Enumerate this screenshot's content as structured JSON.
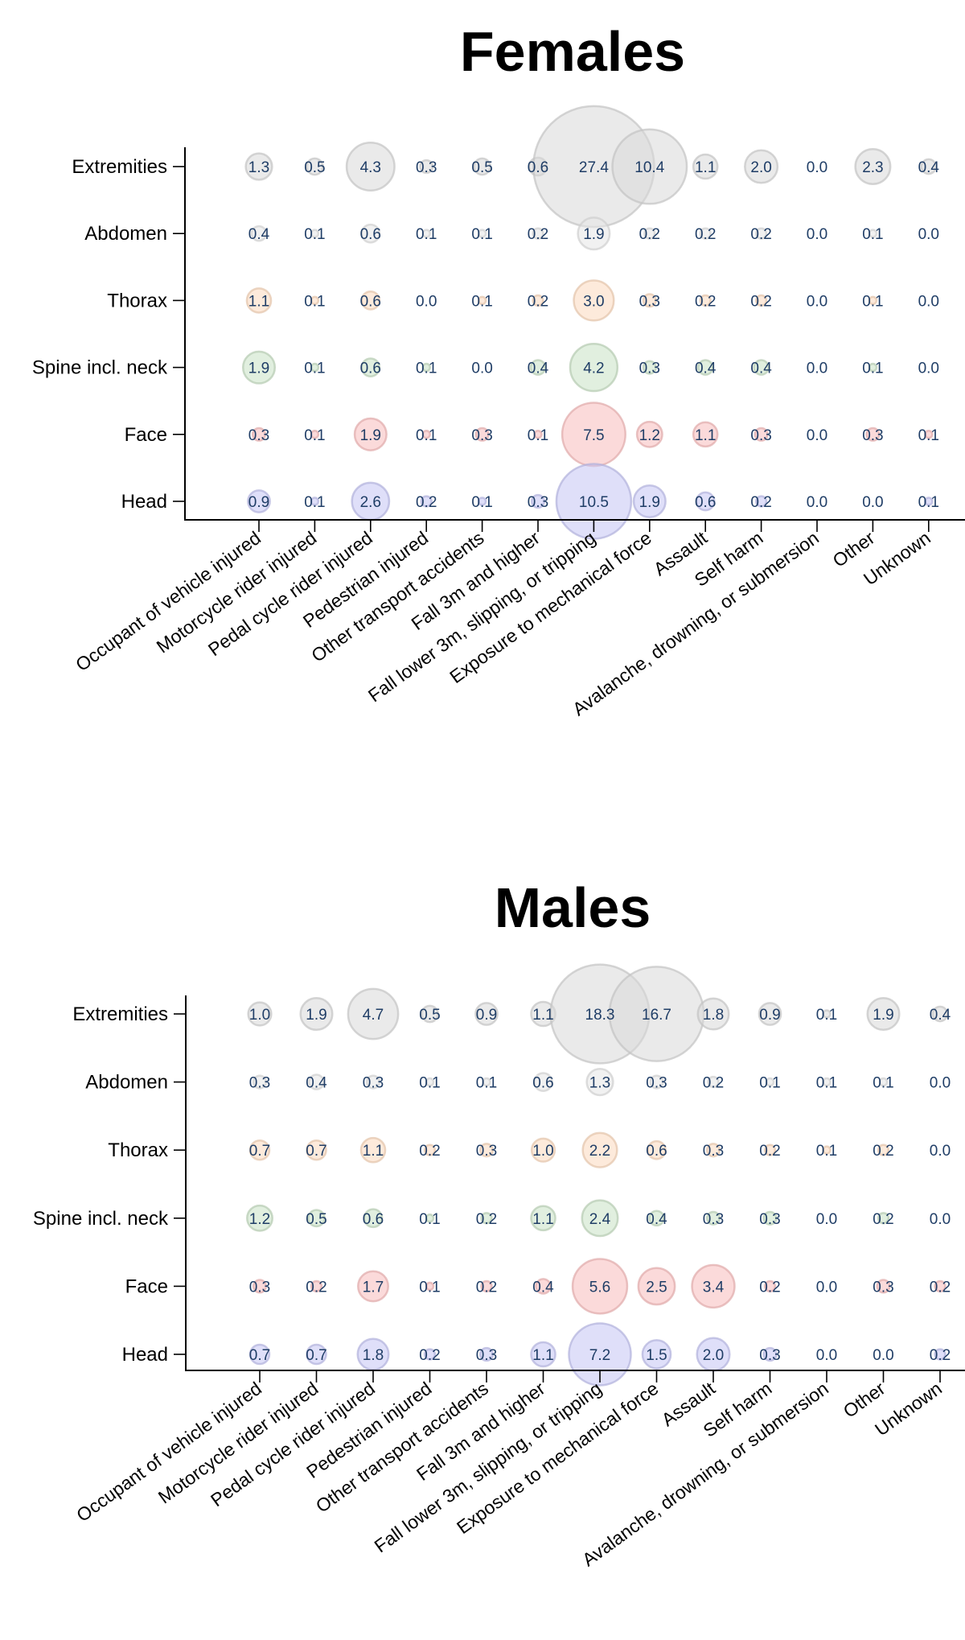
{
  "chart_data": [
    {
      "type": "bubble",
      "title": "Females",
      "xlabel": "",
      "ylabel": "",
      "categories": [
        "Occupant of vehicle injured",
        "Motorcycle rider injured",
        "Pedal cycle rider injured",
        "Pedestrian injured",
        "Other transport accidents",
        "Fall 3m and higher",
        "Fall lower 3m, slipping, or tripping",
        "Exposure to mechanical force",
        "Assault",
        "Self harm",
        "Avalanche, drowning, or submersion",
        "Other",
        "Unknown"
      ],
      "rows": [
        "Extremities",
        "Abdomen",
        "Thorax",
        "Spine incl. neck",
        "Face",
        "Head"
      ],
      "series": [
        {
          "name": "Extremities",
          "color": "#d9d9d9",
          "values": [
            1.3,
            0.5,
            4.3,
            0.3,
            0.5,
            0.6,
            27.4,
            10.4,
            1.1,
            2.0,
            0.0,
            2.3,
            0.4
          ]
        },
        {
          "name": "Abdomen",
          "color": "#e6e6e6",
          "values": [
            0.4,
            0.1,
            0.6,
            0.1,
            0.1,
            0.2,
            1.9,
            0.2,
            0.2,
            0.2,
            0.0,
            0.1,
            0.0
          ]
        },
        {
          "name": "Thorax",
          "color": "#fbd9bd",
          "values": [
            1.1,
            0.1,
            0.6,
            0.0,
            0.1,
            0.2,
            3.0,
            0.3,
            0.2,
            0.2,
            0.0,
            0.1,
            0.0
          ]
        },
        {
          "name": "Spine incl. neck",
          "color": "#c9e2c4",
          "values": [
            1.9,
            0.1,
            0.6,
            0.1,
            0.0,
            0.4,
            4.2,
            0.3,
            0.4,
            0.4,
            0.0,
            0.1,
            0.0
          ]
        },
        {
          "name": "Face",
          "color": "#f8bcbc",
          "values": [
            0.3,
            0.1,
            1.9,
            0.1,
            0.3,
            0.1,
            7.5,
            1.2,
            1.1,
            0.3,
            0.0,
            0.3,
            0.1
          ]
        },
        {
          "name": "Head",
          "color": "#c4c4f4",
          "values": [
            0.9,
            0.1,
            2.6,
            0.2,
            0.1,
            0.3,
            10.5,
            1.9,
            0.6,
            0.2,
            0.0,
            0.0,
            0.1
          ]
        }
      ]
    },
    {
      "type": "bubble",
      "title": "Males",
      "xlabel": "",
      "ylabel": "",
      "categories": [
        "Occupant of vehicle injured",
        "Motorcycle rider injured",
        "Pedal cycle rider injured",
        "Pedestrian injured",
        "Other transport accidents",
        "Fall 3m and higher",
        "Fall lower 3m, slipping, or tripping",
        "Exposure to mechanical force",
        "Assault",
        "Self harm",
        "Avalanche, drowning, or submersion",
        "Other",
        "Unknown"
      ],
      "rows": [
        "Extremities",
        "Abdomen",
        "Thorax",
        "Spine incl. neck",
        "Face",
        "Head"
      ],
      "series": [
        {
          "name": "Extremities",
          "color": "#d9d9d9",
          "values": [
            1.0,
            1.9,
            4.7,
            0.5,
            0.9,
            1.1,
            18.3,
            16.7,
            1.8,
            0.9,
            0.1,
            1.9,
            0.4
          ]
        },
        {
          "name": "Abdomen",
          "color": "#e6e6e6",
          "values": [
            0.3,
            0.4,
            0.3,
            0.1,
            0.1,
            0.6,
            1.3,
            0.3,
            0.2,
            0.1,
            0.1,
            0.1,
            0.0
          ]
        },
        {
          "name": "Thorax",
          "color": "#fbd9bd",
          "values": [
            0.7,
            0.7,
            1.1,
            0.2,
            0.3,
            1.0,
            2.2,
            0.6,
            0.3,
            0.2,
            0.1,
            0.2,
            0.0
          ]
        },
        {
          "name": "Spine incl. neck",
          "color": "#c9e2c4",
          "values": [
            1.2,
            0.5,
            0.6,
            0.1,
            0.2,
            1.1,
            2.4,
            0.4,
            0.3,
            0.3,
            0.0,
            0.2,
            0.0
          ]
        },
        {
          "name": "Face",
          "color": "#f8bcbc",
          "values": [
            0.3,
            0.2,
            1.7,
            0.1,
            0.2,
            0.4,
            5.6,
            2.5,
            3.4,
            0.2,
            0.0,
            0.3,
            0.2
          ]
        },
        {
          "name": "Head",
          "color": "#c4c4f4",
          "values": [
            0.7,
            0.7,
            1.8,
            0.2,
            0.3,
            1.1,
            7.2,
            1.5,
            2.0,
            0.3,
            0.0,
            0.0,
            0.2
          ]
        }
      ]
    }
  ],
  "text_color": "#1f3d66"
}
